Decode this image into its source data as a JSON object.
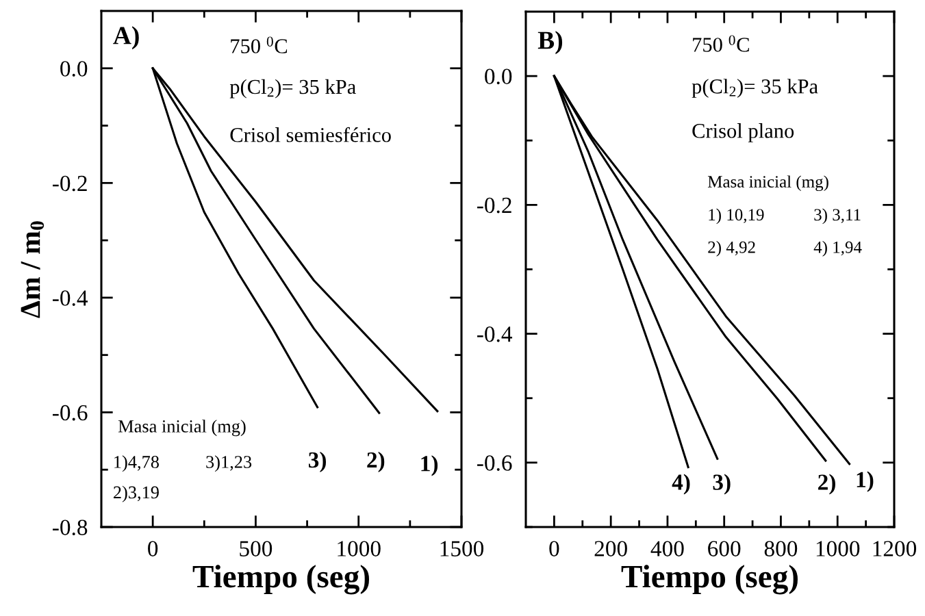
{
  "chart_data": [
    {
      "type": "line",
      "xlabel": "Tiempo (seg)",
      "ylabel": "Δm / m$_{0}$",
      "xlim": [
        -250,
        1500
      ],
      "ylim": [
        -0.8,
        0.1
      ],
      "xticks": [
        0,
        {
          "value": 250,
          "label": null
        },
        500,
        {
          "value": 750,
          "label": null
        },
        1000,
        {
          "value": 1250,
          "label": null
        },
        1500
      ],
      "yticks": [
        -0.8,
        {
          "value": -0.7,
          "label": null
        },
        -0.6,
        {
          "value": -0.5,
          "label": null
        },
        -0.4,
        {
          "value": -0.3,
          "label": null
        },
        -0.2,
        {
          "value": -0.1,
          "label": null
        },
        {
          "value": 0,
          "label": "0.0"
        }
      ],
      "grid": false,
      "legend": false,
      "marker": "none",
      "line_style": "solid",
      "series": [
        {
          "color": "#000000",
          "x": [
            0,
            83,
            250,
            500,
            783,
            1117,
            1383
          ],
          "values": [
            0,
            -0.036,
            -0.119,
            -0.233,
            -0.37,
            -0.496,
            -0.598
          ]
        },
        {
          "color": "#000000",
          "x": [
            0,
            167,
            283,
            500,
            783,
            1100
          ],
          "values": [
            0,
            -0.096,
            -0.179,
            -0.299,
            -0.454,
            -0.601
          ]
        },
        {
          "color": "#000000",
          "x": [
            0,
            117,
            250,
            417,
            583,
            800
          ],
          "values": [
            0,
            -0.131,
            -0.251,
            -0.358,
            -0.454,
            -0.591
          ]
        }
      ],
      "annotations": [
        "A)",
        "750 $^{0}$C",
        "p(Cl$_{2}$)= 35 kPa",
        "Crisol semiesférico",
        "Masa inicial (mg)",
        "1)4,78",
        "3)1,23",
        "2)3,19",
        "3)",
        "2)",
        "1)"
      ]
    },
    {
      "type": "line",
      "xlabel": "Tiempo (seg)",
      "xlim": [
        -100,
        1200
      ],
      "ylim": [
        -0.7,
        0.1
      ],
      "xticks": [
        0,
        {
          "value": 100,
          "label": null
        },
        200,
        {
          "value": 300,
          "label": null
        },
        400,
        {
          "value": 500,
          "label": null
        },
        600,
        {
          "value": 700,
          "label": null
        },
        800,
        {
          "value": 900,
          "label": null
        },
        1000,
        {
          "value": 1100,
          "label": null
        },
        1200
      ],
      "yticks": [
        {
          "value": -0.7,
          "label": null
        },
        -0.6,
        {
          "value": -0.5,
          "label": null
        },
        -0.4,
        {
          "value": -0.3,
          "label": null
        },
        -0.2,
        {
          "value": -0.1,
          "label": null
        },
        {
          "value": 0,
          "label": "0.0"
        }
      ],
      "grid": false,
      "legend": false,
      "marker": "none",
      "line_style": "solid",
      "series": [
        {
          "color": "#000000",
          "x": [
            0,
            61,
            133,
            364,
            606,
            848,
            1042
          ],
          "values": [
            0,
            -0.044,
            -0.094,
            -0.224,
            -0.373,
            -0.496,
            -0.602
          ]
        },
        {
          "color": "#000000",
          "x": [
            0,
            121,
            364,
            606,
            788,
            958
          ],
          "values": [
            0,
            -0.091,
            -0.254,
            -0.405,
            -0.501,
            -0.597
          ]
        },
        {
          "color": "#000000",
          "x": [
            0,
            121,
            242,
            424,
            576
          ],
          "values": [
            0,
            -0.118,
            -0.254,
            -0.443,
            -0.594
          ]
        },
        {
          "color": "#000000",
          "x": [
            0,
            121,
            242,
            364,
            473
          ],
          "values": [
            0,
            -0.15,
            -0.3,
            -0.454,
            -0.607
          ]
        }
      ],
      "annotations": [
        "B)",
        "750 $^{0}$C",
        "p(Cl$_{2}$)= 35 kPa",
        "Crisol plano",
        "Masa inicial (mg)",
        "1) 10,19",
        "3) 3,11",
        "2) 4,92",
        "4) 1,94",
        "4)",
        "3)",
        "2)",
        "1)"
      ]
    }
  ]
}
